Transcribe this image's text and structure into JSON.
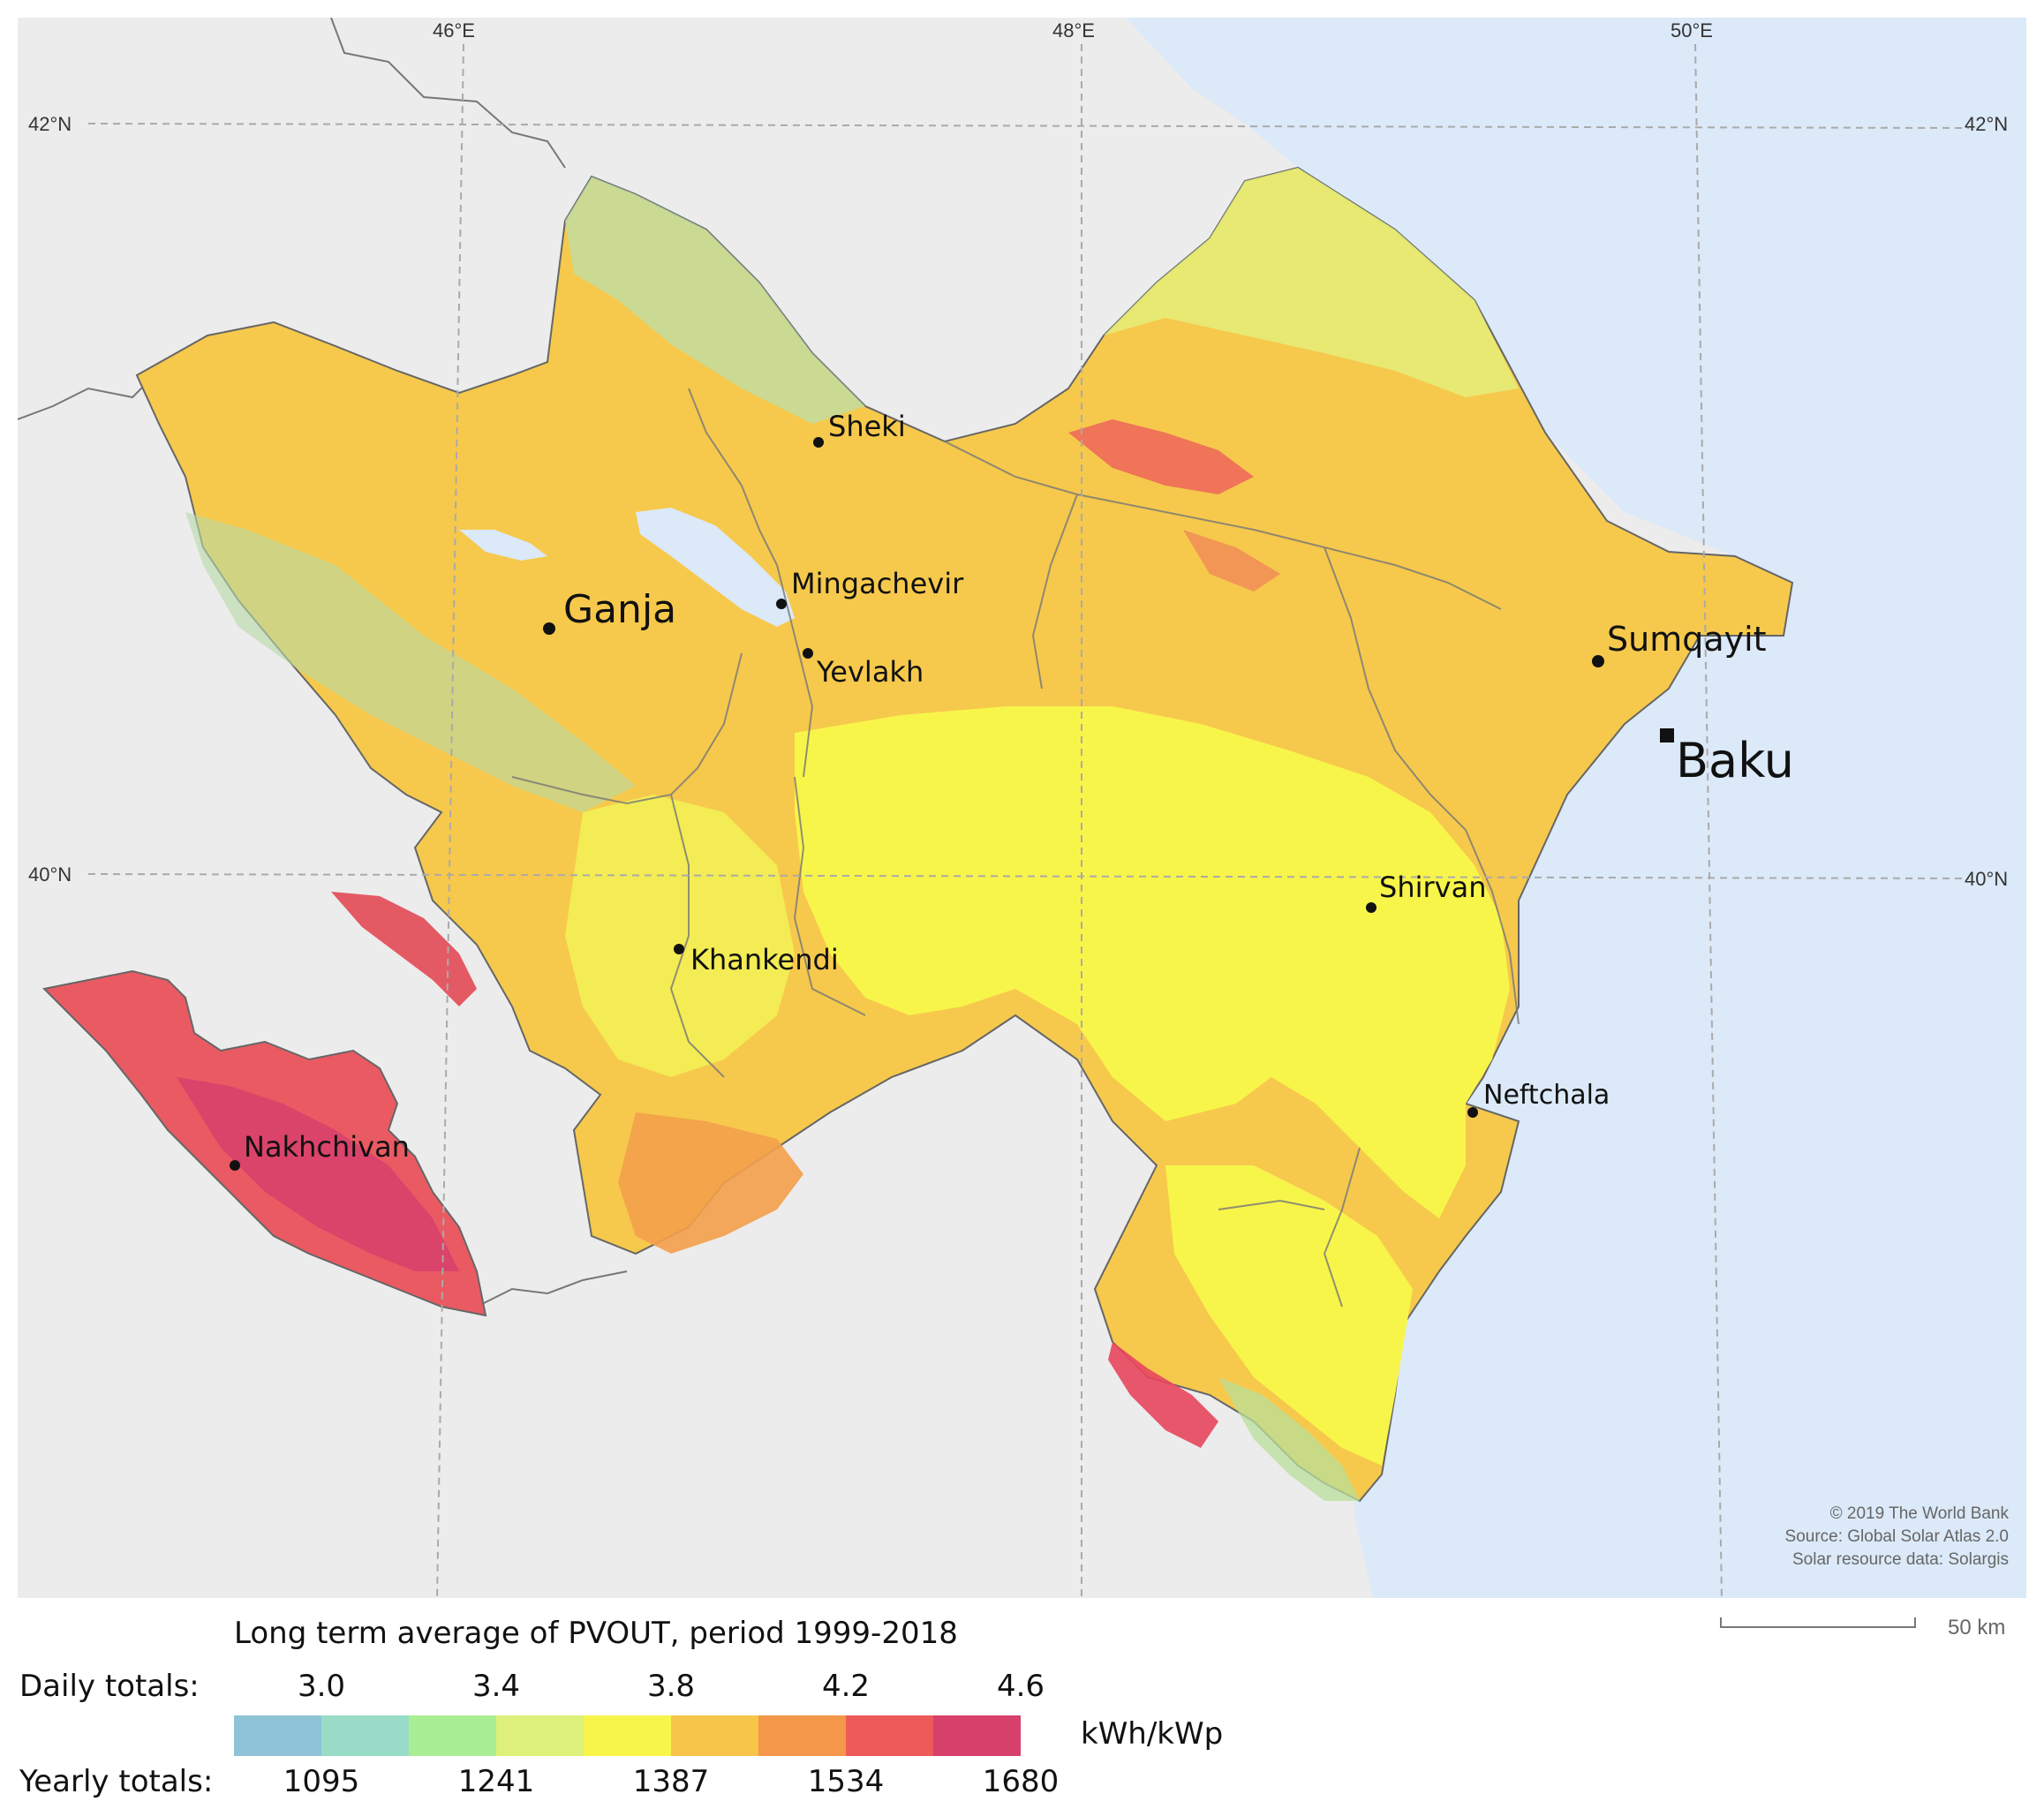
{
  "grid": {
    "lon_labels": [
      "46°E",
      "48°E",
      "50°E"
    ],
    "lat_labels": [
      "42°N",
      "40°N"
    ]
  },
  "cities": {
    "sheki": "Sheki",
    "mingachevir": "Mingachevir",
    "ganja": "Ganja",
    "yevlakh": "Yevlakh",
    "sumqayit": "Sumqayit",
    "baku": "Baku",
    "shirvan": "Shirvan",
    "khankendi": "Khankendi",
    "neftchala": "Neftchala",
    "nakhchivan": "Nakhchivan"
  },
  "credits": [
    "© 2019 The World Bank",
    "Source: Global Solar Atlas 2.0",
    "Solar resource data: Solargis"
  ],
  "scale_bar": {
    "label": "50 km"
  },
  "legend": {
    "title": "Long term average of PVOUT, period 1999-2018",
    "daily_label": "Daily totals:",
    "daily_ticks": [
      "3.0",
      "3.4",
      "3.8",
      "4.2",
      "4.6"
    ],
    "yearly_label": "Yearly totals:",
    "yearly_ticks": [
      "1095",
      "1241",
      "1387",
      "1534",
      "1680"
    ],
    "unit": "kWh/kWp",
    "colors": [
      "#8fc3d8",
      "#98dcc8",
      "#a9ee95",
      "#dcf07a",
      "#f8f54a",
      "#f6c54a",
      "#f4974a",
      "#ee5a5a",
      "#d8406c"
    ]
  },
  "colors": {
    "sea": "#dbe9f8",
    "land_outside": "#ececec",
    "border": "#555555"
  }
}
